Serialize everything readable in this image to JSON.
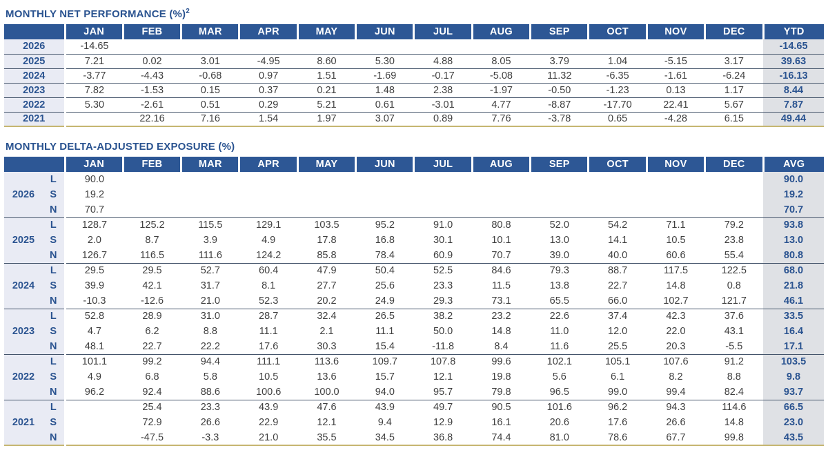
{
  "colors": {
    "header_bg": "#2d5795",
    "navy_text": "#2a5390",
    "row_label_bg": "#e9ebf4",
    "total_col_bg": "#dfe1e5",
    "gold_rule": "#c6b671",
    "value_text": "#3f3f3f"
  },
  "table1": {
    "title": "MONTHLY NET PERFORMANCE (%)",
    "title_sup": "2",
    "columns": [
      "JAN",
      "FEB",
      "MAR",
      "APR",
      "MAY",
      "JUN",
      "JUL",
      "AUG",
      "SEP",
      "OCT",
      "NOV",
      "DEC"
    ],
    "last_col": "YTD",
    "rows": [
      {
        "year": "2026",
        "values": [
          "-14.65",
          "",
          "",
          "",
          "",
          "",
          "",
          "",
          "",
          "",
          "",
          ""
        ],
        "total": "-14.65"
      },
      {
        "year": "2025",
        "values": [
          "7.21",
          "0.02",
          "3.01",
          "-4.95",
          "8.60",
          "5.30",
          "4.88",
          "8.05",
          "3.79",
          "1.04",
          "-5.15",
          "3.17"
        ],
        "total": "39.63"
      },
      {
        "year": "2024",
        "values": [
          "-3.77",
          "-4.43",
          "-0.68",
          "0.97",
          "1.51",
          "-1.69",
          "-0.17",
          "-5.08",
          "11.32",
          "-6.35",
          "-1.61",
          "-6.24"
        ],
        "total": "-16.13"
      },
      {
        "year": "2023",
        "values": [
          "7.82",
          "-1.53",
          "0.15",
          "0.37",
          "0.21",
          "1.48",
          "2.38",
          "-1.97",
          "-0.50",
          "-1.23",
          "0.13",
          "1.17"
        ],
        "total": "8.44"
      },
      {
        "year": "2022",
        "values": [
          "5.30",
          "-2.61",
          "0.51",
          "0.29",
          "5.21",
          "0.61",
          "-3.01",
          "4.77",
          "-8.87",
          "-17.70",
          "22.41",
          "5.67"
        ],
        "total": "7.87"
      },
      {
        "year": "2021",
        "values": [
          "",
          "22.16",
          "7.16",
          "1.54",
          "1.97",
          "3.07",
          "0.89",
          "7.76",
          "-3.78",
          "0.65",
          "-4.28",
          "6.15"
        ],
        "total": "49.44"
      }
    ]
  },
  "table2": {
    "title": "MONTHLY DELTA-ADJUSTED EXPOSURE (%)",
    "columns": [
      "JAN",
      "FEB",
      "MAR",
      "APR",
      "MAY",
      "JUN",
      "JUL",
      "AUG",
      "SEP",
      "OCT",
      "NOV",
      "DEC"
    ],
    "last_col": "AVG",
    "groups": [
      {
        "year": "2026",
        "rows": [
          {
            "label": "L",
            "values": [
              "90.0",
              "",
              "",
              "",
              "",
              "",
              "",
              "",
              "",
              "",
              "",
              ""
            ],
            "avg": "90.0"
          },
          {
            "label": "S",
            "values": [
              "19.2",
              "",
              "",
              "",
              "",
              "",
              "",
              "",
              "",
              "",
              "",
              ""
            ],
            "avg": "19.2"
          },
          {
            "label": "N",
            "values": [
              "70.7",
              "",
              "",
              "",
              "",
              "",
              "",
              "",
              "",
              "",
              "",
              ""
            ],
            "avg": "70.7"
          }
        ]
      },
      {
        "year": "2025",
        "rows": [
          {
            "label": "L",
            "values": [
              "128.7",
              "125.2",
              "115.5",
              "129.1",
              "103.5",
              "95.2",
              "91.0",
              "80.8",
              "52.0",
              "54.2",
              "71.1",
              "79.2"
            ],
            "avg": "93.8"
          },
          {
            "label": "S",
            "values": [
              "2.0",
              "8.7",
              "3.9",
              "4.9",
              "17.8",
              "16.8",
              "30.1",
              "10.1",
              "13.0",
              "14.1",
              "10.5",
              "23.8"
            ],
            "avg": "13.0"
          },
          {
            "label": "N",
            "values": [
              "126.7",
              "116.5",
              "111.6",
              "124.2",
              "85.8",
              "78.4",
              "60.9",
              "70.7",
              "39.0",
              "40.0",
              "60.6",
              "55.4"
            ],
            "avg": "80.8"
          }
        ]
      },
      {
        "year": "2024",
        "rows": [
          {
            "label": "L",
            "values": [
              "29.5",
              "29.5",
              "52.7",
              "60.4",
              "47.9",
              "50.4",
              "52.5",
              "84.6",
              "79.3",
              "88.7",
              "117.5",
              "122.5"
            ],
            "avg": "68.0"
          },
          {
            "label": "S",
            "values": [
              "39.9",
              "42.1",
              "31.7",
              "8.1",
              "27.7",
              "25.6",
              "23.3",
              "11.5",
              "13.8",
              "22.7",
              "14.8",
              "0.8"
            ],
            "avg": "21.8"
          },
          {
            "label": "N",
            "values": [
              "-10.3",
              "-12.6",
              "21.0",
              "52.3",
              "20.2",
              "24.9",
              "29.3",
              "73.1",
              "65.5",
              "66.0",
              "102.7",
              "121.7"
            ],
            "avg": "46.1"
          }
        ]
      },
      {
        "year": "2023",
        "rows": [
          {
            "label": "L",
            "values": [
              "52.8",
              "28.9",
              "31.0",
              "28.7",
              "32.4",
              "26.5",
              "38.2",
              "23.2",
              "22.6",
              "37.4",
              "42.3",
              "37.6"
            ],
            "avg": "33.5"
          },
          {
            "label": "S",
            "values": [
              "4.7",
              "6.2",
              "8.8",
              "11.1",
              "2.1",
              "11.1",
              "50.0",
              "14.8",
              "11.0",
              "12.0",
              "22.0",
              "43.1"
            ],
            "avg": "16.4"
          },
          {
            "label": "N",
            "values": [
              "48.1",
              "22.7",
              "22.2",
              "17.6",
              "30.3",
              "15.4",
              "-11.8",
              "8.4",
              "11.6",
              "25.5",
              "20.3",
              "-5.5"
            ],
            "avg": "17.1"
          }
        ]
      },
      {
        "year": "2022",
        "rows": [
          {
            "label": "L",
            "values": [
              "101.1",
              "99.2",
              "94.4",
              "111.1",
              "113.6",
              "109.7",
              "107.8",
              "99.6",
              "102.1",
              "105.1",
              "107.6",
              "91.2"
            ],
            "avg": "103.5"
          },
          {
            "label": "S",
            "values": [
              "4.9",
              "6.8",
              "5.8",
              "10.5",
              "13.6",
              "15.7",
              "12.1",
              "19.8",
              "5.6",
              "6.1",
              "8.2",
              "8.8"
            ],
            "avg": "9.8"
          },
          {
            "label": "N",
            "values": [
              "96.2",
              "92.4",
              "88.6",
              "100.6",
              "100.0",
              "94.0",
              "95.7",
              "79.8",
              "96.5",
              "99.0",
              "99.4",
              "82.4"
            ],
            "avg": "93.7"
          }
        ]
      },
      {
        "year": "2021",
        "rows": [
          {
            "label": "L",
            "values": [
              "",
              "25.4",
              "23.3",
              "43.9",
              "47.6",
              "43.9",
              "49.7",
              "90.5",
              "101.6",
              "96.2",
              "94.3",
              "114.6"
            ],
            "avg": "66.5"
          },
          {
            "label": "S",
            "values": [
              "",
              "72.9",
              "26.6",
              "22.9",
              "12.1",
              "9.4",
              "12.9",
              "16.1",
              "20.6",
              "17.6",
              "26.6",
              "14.8"
            ],
            "avg": "23.0"
          },
          {
            "label": "N",
            "values": [
              "",
              "-47.5",
              "-3.3",
              "21.0",
              "35.5",
              "34.5",
              "36.8",
              "74.4",
              "81.0",
              "78.6",
              "67.7",
              "99.8"
            ],
            "avg": "43.5"
          }
        ]
      }
    ]
  }
}
